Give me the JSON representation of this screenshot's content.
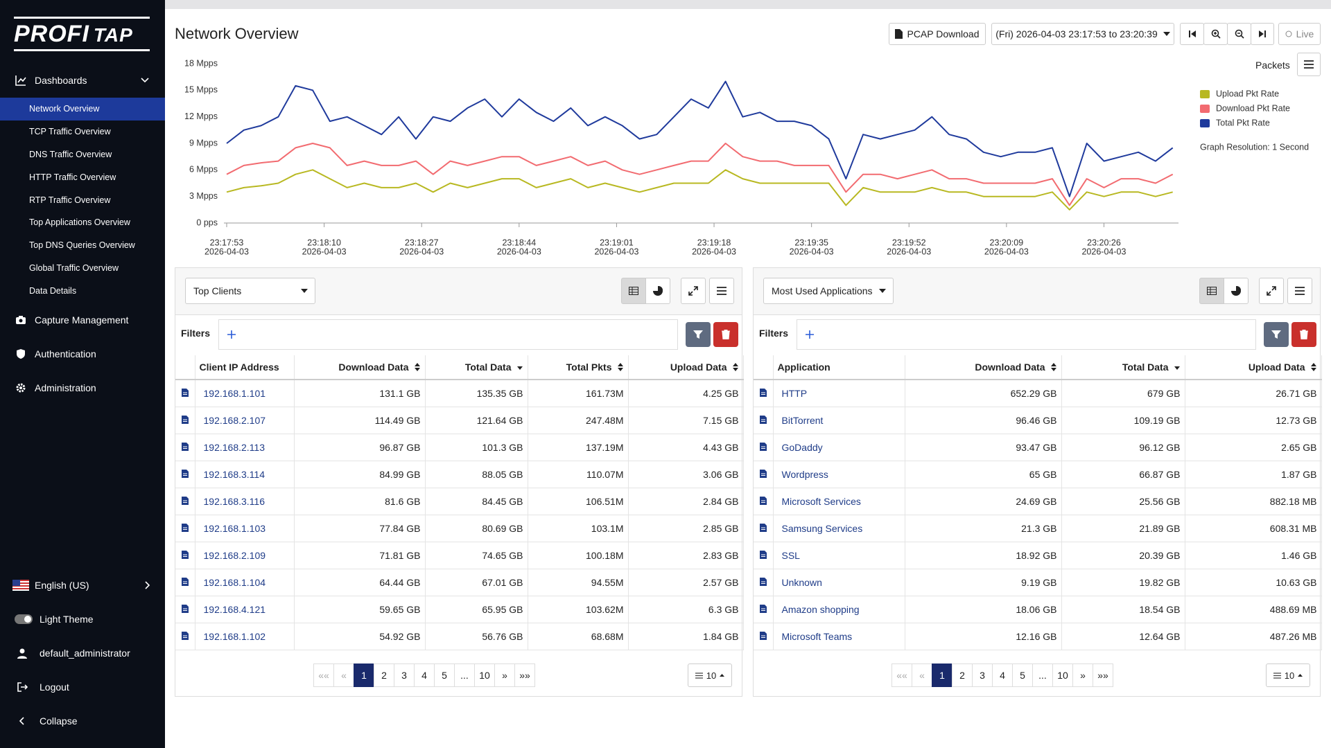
{
  "sidebar": {
    "logo_main": "PROFI",
    "logo_accent": "TAP",
    "dashboards": "Dashboards",
    "dashboard_items": [
      "Network Overview",
      "TCP Traffic Overview",
      "DNS Traffic Overview",
      "HTTP Traffic Overview",
      "RTP Traffic Overview",
      "Top Applications Overview",
      "Top DNS Queries Overview",
      "Global Traffic Overview",
      "Data Details"
    ],
    "sections": [
      "Capture Management",
      "Authentication",
      "Administration"
    ],
    "language": "English (US)",
    "theme": "Light Theme",
    "user": "default_administrator",
    "logout": "Logout",
    "collapse": "Collapse"
  },
  "header": {
    "title": "Network Overview",
    "pcap": "PCAP Download",
    "range": "(Fri) 2026-04-03 23:17:53 to 23:20:39",
    "live": "Live"
  },
  "chart_data": {
    "type": "line",
    "metric": "Packets",
    "resolution": "Graph Resolution: 1 Second",
    "legend": "right",
    "grid": false,
    "x": [
      "23:17:53",
      "23:17:56",
      "23:17:59",
      "23:18:02",
      "23:18:05",
      "23:18:08",
      "23:18:11",
      "23:18:14",
      "23:18:17",
      "23:18:20",
      "23:18:23",
      "23:18:26",
      "23:18:29",
      "23:18:32",
      "23:18:35",
      "23:18:38",
      "23:18:41",
      "23:18:44",
      "23:18:47",
      "23:18:50",
      "23:18:53",
      "23:18:56",
      "23:18:59",
      "23:19:02",
      "23:19:05",
      "23:19:08",
      "23:19:11",
      "23:19:14",
      "23:19:17",
      "23:19:20",
      "23:19:23",
      "23:19:26",
      "23:19:29",
      "23:19:32",
      "23:19:35",
      "23:19:38",
      "23:19:41",
      "23:19:44",
      "23:19:47",
      "23:19:50",
      "23:19:53",
      "23:19:56",
      "23:19:59",
      "23:20:02",
      "23:20:05",
      "23:20:08",
      "23:20:11",
      "23:20:14",
      "23:20:17",
      "23:20:20",
      "23:20:23",
      "23:20:26",
      "23:20:29",
      "23:20:32",
      "23:20:35",
      "23:20:38"
    ],
    "x_date": "2026-04-03",
    "xlim": [
      "23:17:53",
      "23:20:39"
    ],
    "xticks": [
      "23:17:53",
      "23:18:10",
      "23:18:27",
      "23:18:44",
      "23:19:01",
      "23:19:18",
      "23:19:35",
      "23:19:52",
      "23:20:09",
      "23:20:26"
    ],
    "ylim": [
      0,
      18
    ],
    "yticks": [
      {
        "value": 0,
        "label": "0 pps"
      },
      {
        "value": 3,
        "label": "3 Mpps"
      },
      {
        "value": 6,
        "label": "6 Mpps"
      },
      {
        "value": 9,
        "label": "9 Mpps"
      },
      {
        "value": 12,
        "label": "12 Mpps"
      },
      {
        "value": 15,
        "label": "15 Mpps"
      },
      {
        "value": 18,
        "label": "18 Mpps"
      }
    ],
    "series": [
      {
        "name": "Upload Pkt Rate",
        "color": "#b8b821",
        "values": [
          3.5,
          4,
          4.2,
          4.5,
          5.5,
          6,
          5,
          4,
          4.5,
          4,
          4,
          4.5,
          3.5,
          4.5,
          4,
          4.5,
          5,
          5,
          4,
          4.5,
          5,
          4,
          4.5,
          4,
          3.5,
          4,
          4.5,
          4.5,
          4.5,
          6,
          5,
          4.5,
          4.5,
          4.5,
          4.5,
          4.5,
          2,
          4,
          3.5,
          3.5,
          3.5,
          4,
          3.5,
          3.5,
          3,
          3,
          3,
          3,
          3.5,
          1.5,
          3.5,
          3,
          3.5,
          3.5,
          3,
          3.5
        ]
      },
      {
        "name": "Download Pkt Rate",
        "color": "#f26b70",
        "values": [
          5.5,
          6.5,
          6.8,
          7,
          8.5,
          9,
          8.5,
          6.5,
          7,
          6.5,
          6.5,
          7,
          5.5,
          7,
          6.5,
          7,
          7.5,
          7.5,
          6.5,
          7,
          7.5,
          6.5,
          7,
          6,
          5.5,
          6,
          6.5,
          7,
          7,
          9,
          7.5,
          7,
          7,
          6.5,
          6.5,
          6.5,
          3.5,
          5.5,
          5.5,
          5,
          5.5,
          6,
          5,
          5,
          4.5,
          4.5,
          4.5,
          4.5,
          5,
          2,
          5,
          4,
          5,
          5,
          4.5,
          5.5
        ]
      },
      {
        "name": "Total Pkt Rate",
        "color": "#1f3a9c",
        "values": [
          9,
          10.5,
          11,
          12,
          15.5,
          15,
          11.5,
          12,
          11,
          10,
          12,
          9.5,
          12,
          11.5,
          13,
          14,
          12,
          14,
          12.5,
          11.5,
          13,
          11,
          12,
          11,
          9.5,
          10,
          12,
          14,
          13,
          16,
          12,
          12.5,
          11.5,
          11.5,
          11,
          9.5,
          5,
          10,
          9.5,
          10,
          10.5,
          12,
          10,
          9.5,
          8,
          7.5,
          8,
          8,
          8.5,
          3,
          9,
          7,
          7.5,
          8,
          7,
          8.5
        ]
      }
    ]
  },
  "panels": [
    {
      "selector": "Top Clients",
      "filters": "Filters",
      "columns": [
        {
          "name": "Client IP Address"
        },
        {
          "name": "Download Data",
          "sort": "both"
        },
        {
          "name": "Total Data",
          "sort": "desc"
        },
        {
          "name": "Total Pkts",
          "sort": "both"
        },
        {
          "name": "Upload Data",
          "sort": "both"
        }
      ],
      "rows": [
        [
          "192.168.1.101",
          "131.1 GB",
          "135.35 GB",
          "161.73M",
          "4.25 GB"
        ],
        [
          "192.168.2.107",
          "114.49 GB",
          "121.64 GB",
          "247.48M",
          "7.15 GB"
        ],
        [
          "192.168.2.113",
          "96.87 GB",
          "101.3 GB",
          "137.19M",
          "4.43 GB"
        ],
        [
          "192.168.3.114",
          "84.99 GB",
          "88.05 GB",
          "110.07M",
          "3.06 GB"
        ],
        [
          "192.168.3.116",
          "81.6 GB",
          "84.45 GB",
          "106.51M",
          "2.84 GB"
        ],
        [
          "192.168.1.103",
          "77.84 GB",
          "80.69 GB",
          "103.1M",
          "2.85 GB"
        ],
        [
          "192.168.2.109",
          "71.81 GB",
          "74.65 GB",
          "100.18M",
          "2.83 GB"
        ],
        [
          "192.168.1.104",
          "64.44 GB",
          "67.01 GB",
          "94.55M",
          "2.57 GB"
        ],
        [
          "192.168.4.121",
          "59.65 GB",
          "65.95 GB",
          "103.62M",
          "6.3 GB"
        ],
        [
          "192.168.1.102",
          "54.92 GB",
          "56.76 GB",
          "68.68M",
          "1.84 GB"
        ]
      ],
      "pages": [
        "««",
        "«",
        "1",
        "2",
        "3",
        "4",
        "5",
        "...",
        "10",
        "»",
        "»»"
      ],
      "page_size": "10"
    },
    {
      "selector": "Most Used Applications",
      "filters": "Filters",
      "columns": [
        {
          "name": "Application"
        },
        {
          "name": "Download Data",
          "sort": "both"
        },
        {
          "name": "Total Data",
          "sort": "desc"
        },
        {
          "name": "Upload Data",
          "sort": "both"
        }
      ],
      "rows": [
        [
          "HTTP",
          "652.29 GB",
          "679 GB",
          "26.71 GB"
        ],
        [
          "BitTorrent",
          "96.46 GB",
          "109.19 GB",
          "12.73 GB"
        ],
        [
          "GoDaddy",
          "93.47 GB",
          "96.12 GB",
          "2.65 GB"
        ],
        [
          "Wordpress",
          "65 GB",
          "66.87 GB",
          "1.87 GB"
        ],
        [
          "Microsoft Services",
          "24.69 GB",
          "25.56 GB",
          "882.18 MB"
        ],
        [
          "Samsung Services",
          "21.3 GB",
          "21.89 GB",
          "608.31 MB"
        ],
        [
          "SSL",
          "18.92 GB",
          "20.39 GB",
          "1.46 GB"
        ],
        [
          "Unknown",
          "9.19 GB",
          "19.82 GB",
          "10.63 GB"
        ],
        [
          "Amazon shopping",
          "18.06 GB",
          "18.54 GB",
          "488.69 MB"
        ],
        [
          "Microsoft Teams",
          "12.16 GB",
          "12.64 GB",
          "487.26 MB"
        ]
      ],
      "pages": [
        "««",
        "«",
        "1",
        "2",
        "3",
        "4",
        "5",
        "...",
        "10",
        "»",
        "»»"
      ],
      "page_size": "10"
    }
  ]
}
